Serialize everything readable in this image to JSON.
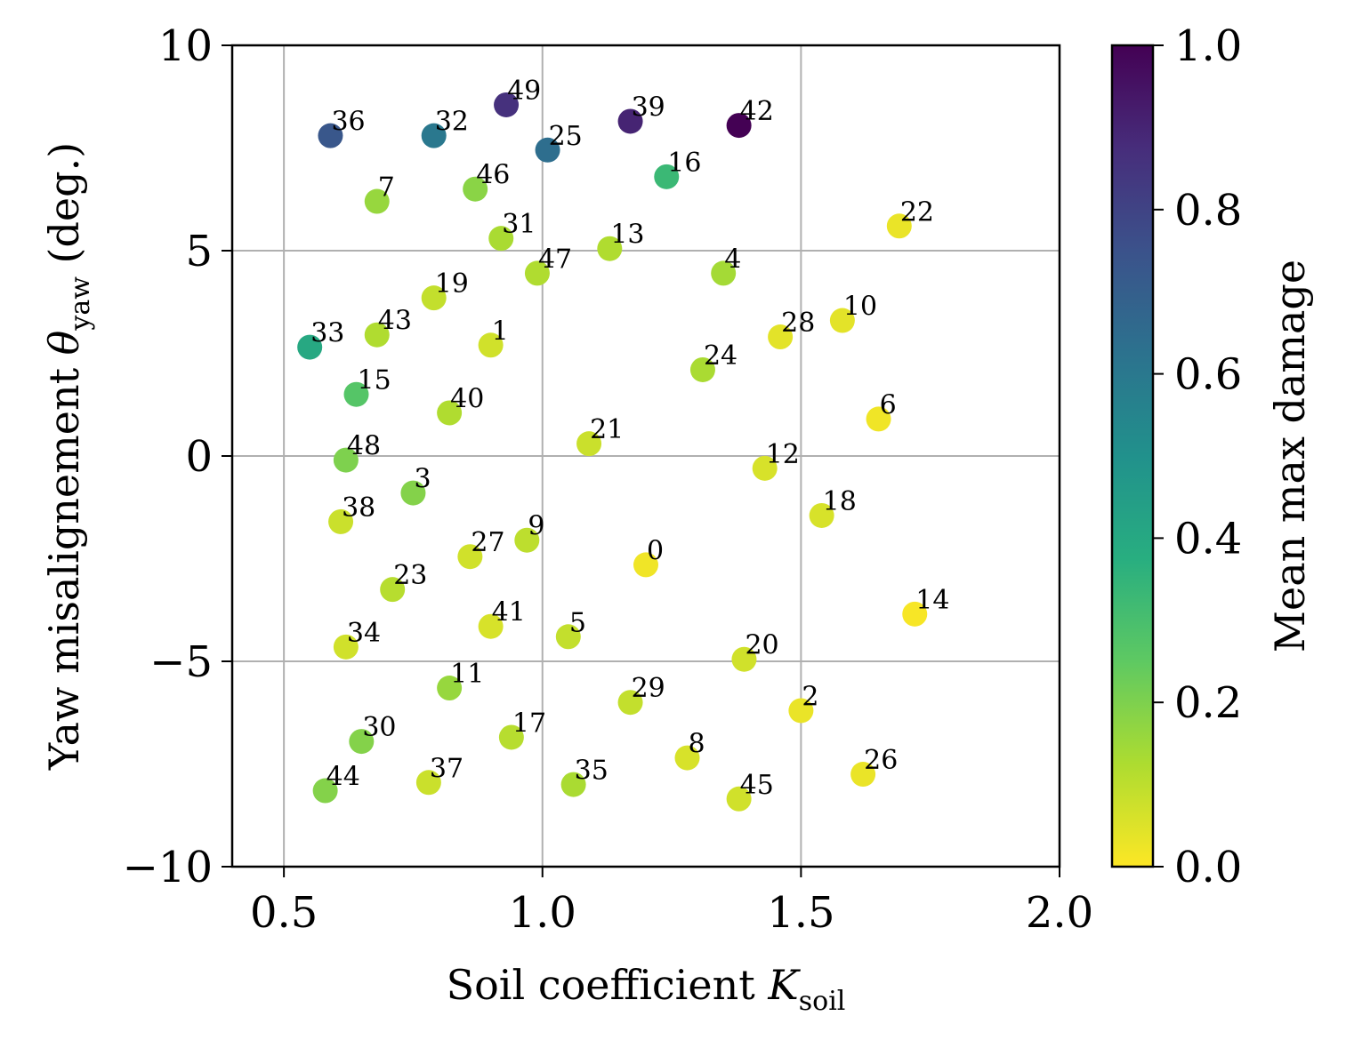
{
  "chart_data": {
    "type": "scatter",
    "xlabel": {
      "main": "Soil coefficient ",
      "symbol": "K",
      "sub": "soil"
    },
    "ylabel": {
      "main": "Yaw misalignement ",
      "symbol": "θ",
      "sub": "yaw",
      "suffix": " (deg.)"
    },
    "xlim": [
      0.4,
      2.0
    ],
    "ylim": [
      -10,
      10
    ],
    "xticks": [
      0.5,
      1.0,
      1.5,
      2.0
    ],
    "xtick_labels": [
      "0.5",
      "1.0",
      "1.5",
      "2.0"
    ],
    "yticks": [
      -10,
      -5,
      0,
      5,
      10
    ],
    "ytick_labels": [
      "−10",
      "−5",
      "0",
      "5",
      "10"
    ],
    "grid": true,
    "colormap": "viridis_r",
    "colorbar": {
      "label": "Mean max damage",
      "range": [
        0.0,
        1.0
      ],
      "ticks": [
        0.0,
        0.2,
        0.4,
        0.6,
        0.8,
        1.0
      ],
      "tick_labels": [
        "0.0",
        "0.2",
        "0.4",
        "0.6",
        "0.8",
        "1.0"
      ]
    },
    "points": [
      {
        "label": "0",
        "x": 1.2,
        "y": -2.65,
        "c": 0.02
      },
      {
        "label": "1",
        "x": 0.9,
        "y": 2.7,
        "c": 0.07
      },
      {
        "label": "2",
        "x": 1.5,
        "y": -6.2,
        "c": 0.03
      },
      {
        "label": "3",
        "x": 0.75,
        "y": -0.9,
        "c": 0.19
      },
      {
        "label": "4",
        "x": 1.35,
        "y": 4.45,
        "c": 0.14
      },
      {
        "label": "5",
        "x": 1.05,
        "y": -4.4,
        "c": 0.09
      },
      {
        "label": "6",
        "x": 1.65,
        "y": 0.9,
        "c": 0.02
      },
      {
        "label": "7",
        "x": 0.68,
        "y": 6.2,
        "c": 0.16
      },
      {
        "label": "8",
        "x": 1.28,
        "y": -7.35,
        "c": 0.06
      },
      {
        "label": "9",
        "x": 0.97,
        "y": -2.05,
        "c": 0.1
      },
      {
        "label": "10",
        "x": 1.58,
        "y": 3.3,
        "c": 0.04
      },
      {
        "label": "11",
        "x": 0.82,
        "y": -5.65,
        "c": 0.16
      },
      {
        "label": "12",
        "x": 1.43,
        "y": -0.3,
        "c": 0.06
      },
      {
        "label": "13",
        "x": 1.13,
        "y": 5.05,
        "c": 0.12
      },
      {
        "label": "14",
        "x": 1.72,
        "y": -3.85,
        "c": 0.01
      },
      {
        "label": "15",
        "x": 0.64,
        "y": 1.5,
        "c": 0.27
      },
      {
        "label": "16",
        "x": 1.24,
        "y": 6.8,
        "c": 0.33
      },
      {
        "label": "17",
        "x": 0.94,
        "y": -6.85,
        "c": 0.11
      },
      {
        "label": "18",
        "x": 1.54,
        "y": -1.45,
        "c": 0.06
      },
      {
        "label": "19",
        "x": 0.79,
        "y": 3.85,
        "c": 0.09
      },
      {
        "label": "20",
        "x": 1.39,
        "y": -4.95,
        "c": 0.07
      },
      {
        "label": "21",
        "x": 1.09,
        "y": 0.3,
        "c": 0.08
      },
      {
        "label": "22",
        "x": 1.69,
        "y": 5.6,
        "c": 0.03
      },
      {
        "label": "23",
        "x": 0.71,
        "y": -3.25,
        "c": 0.11
      },
      {
        "label": "24",
        "x": 1.31,
        "y": 2.1,
        "c": 0.13
      },
      {
        "label": "25",
        "x": 1.01,
        "y": 7.45,
        "c": 0.64
      },
      {
        "label": "26",
        "x": 1.62,
        "y": -7.75,
        "c": 0.03
      },
      {
        "label": "27",
        "x": 0.86,
        "y": -2.45,
        "c": 0.07
      },
      {
        "label": "28",
        "x": 1.46,
        "y": 2.9,
        "c": 0.04
      },
      {
        "label": "29",
        "x": 1.17,
        "y": -6.0,
        "c": 0.09
      },
      {
        "label": "30",
        "x": 0.65,
        "y": -6.95,
        "c": 0.19
      },
      {
        "label": "31",
        "x": 0.92,
        "y": 5.3,
        "c": 0.13
      },
      {
        "label": "32",
        "x": 0.79,
        "y": 7.8,
        "c": 0.6
      },
      {
        "label": "33",
        "x": 0.55,
        "y": 2.65,
        "c": 0.4
      },
      {
        "label": "34",
        "x": 0.62,
        "y": -4.65,
        "c": 0.07
      },
      {
        "label": "35",
        "x": 1.06,
        "y": -8.0,
        "c": 0.13
      },
      {
        "label": "36",
        "x": 0.59,
        "y": 7.8,
        "c": 0.73
      },
      {
        "label": "37",
        "x": 0.78,
        "y": -7.95,
        "c": 0.08
      },
      {
        "label": "38",
        "x": 0.61,
        "y": -1.6,
        "c": 0.08
      },
      {
        "label": "39",
        "x": 1.17,
        "y": 8.15,
        "c": 0.9
      },
      {
        "label": "40",
        "x": 0.82,
        "y": 1.05,
        "c": 0.12
      },
      {
        "label": "41",
        "x": 0.9,
        "y": -4.15,
        "c": 0.06
      },
      {
        "label": "42",
        "x": 1.38,
        "y": 8.05,
        "c": 1.0
      },
      {
        "label": "43",
        "x": 0.68,
        "y": 2.95,
        "c": 0.12
      },
      {
        "label": "44",
        "x": 0.58,
        "y": -8.15,
        "c": 0.19
      },
      {
        "label": "45",
        "x": 1.38,
        "y": -8.35,
        "c": 0.07
      },
      {
        "label": "46",
        "x": 0.87,
        "y": 6.5,
        "c": 0.18
      },
      {
        "label": "47",
        "x": 0.99,
        "y": 4.45,
        "c": 0.12
      },
      {
        "label": "48",
        "x": 0.62,
        "y": -0.1,
        "c": 0.2
      },
      {
        "label": "49",
        "x": 0.93,
        "y": 8.55,
        "c": 0.86
      }
    ]
  }
}
